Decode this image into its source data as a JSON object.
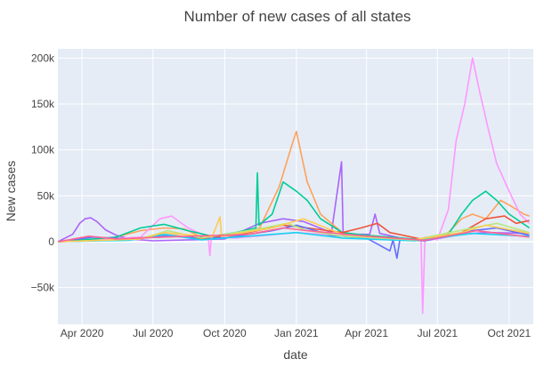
{
  "chart_data": {
    "type": "line",
    "title": "Number of new cases of all states",
    "xlabel": "date",
    "ylabel": "New cases",
    "xlim": [
      "2020-03-01",
      "2021-11-01"
    ],
    "ylim": [
      -90000,
      210000
    ],
    "x_ticks": [
      "2020-04-01",
      "2020-07-01",
      "2020-10-01",
      "2021-01-01",
      "2021-04-01",
      "2021-07-01",
      "2021-10-01"
    ],
    "x_tick_labels": [
      "Apr 2020",
      "Jul 2020",
      "Oct 2020",
      "Jan 2021",
      "Apr 2021",
      "Jul 2021",
      "Oct 2021"
    ],
    "y_ticks": [
      -50000,
      0,
      50000,
      100000,
      150000,
      200000
    ],
    "y_tick_labels": [
      "−50k",
      "0",
      "50k",
      "100k",
      "150k",
      "200k"
    ],
    "grid": true,
    "legend": "none",
    "plot_background": "#e5ecf6",
    "series": [
      {
        "color": "#ab63fa",
        "points": [
          [
            "2020-03-01",
            0
          ],
          [
            "2020-03-20",
            8000
          ],
          [
            "2020-03-29",
            20000
          ],
          [
            "2020-04-05",
            25000
          ],
          [
            "2020-04-12",
            26000
          ],
          [
            "2020-04-20",
            22000
          ],
          [
            "2020-05-01",
            13000
          ],
          [
            "2020-05-15",
            7000
          ],
          [
            "2020-06-01",
            3000
          ],
          [
            "2020-07-01",
            1000
          ],
          [
            "2020-10-01",
            3000
          ],
          [
            "2020-11-15",
            20000
          ],
          [
            "2020-12-15",
            25000
          ],
          [
            "2021-01-10",
            22000
          ],
          [
            "2021-02-15",
            10000
          ],
          [
            "2021-02-28",
            87000
          ],
          [
            "2021-03-02",
            8000
          ],
          [
            "2021-04-05",
            8000
          ],
          [
            "2021-04-12",
            30000
          ],
          [
            "2021-04-18",
            9000
          ],
          [
            "2021-05-15",
            4000
          ],
          [
            "2021-06-15",
            1000
          ],
          [
            "2021-08-01",
            8000
          ],
          [
            "2021-09-01",
            10000
          ],
          [
            "2021-10-27",
            9000
          ]
        ]
      },
      {
        "color": "#ffa15a",
        "points": [
          [
            "2020-03-01",
            0
          ],
          [
            "2020-05-01",
            2000
          ],
          [
            "2020-06-15",
            12000
          ],
          [
            "2020-07-15",
            15000
          ],
          [
            "2020-08-10",
            14000
          ],
          [
            "2020-09-01",
            5000
          ],
          [
            "2020-10-01",
            4000
          ],
          [
            "2020-11-15",
            15000
          ],
          [
            "2020-12-10",
            60000
          ],
          [
            "2020-12-28",
            110000
          ],
          [
            "2021-01-01",
            120000
          ],
          [
            "2021-01-06",
            100000
          ],
          [
            "2021-01-15",
            65000
          ],
          [
            "2021-02-01",
            30000
          ],
          [
            "2021-03-01",
            10000
          ],
          [
            "2021-04-01",
            5000
          ],
          [
            "2021-05-01",
            2000
          ],
          [
            "2021-06-15",
            1000
          ],
          [
            "2021-07-15",
            10000
          ],
          [
            "2021-08-01",
            25000
          ],
          [
            "2021-08-15",
            30000
          ],
          [
            "2021-09-01",
            25000
          ],
          [
            "2021-09-20",
            45000
          ],
          [
            "2021-10-01",
            40000
          ],
          [
            "2021-10-20",
            30000
          ],
          [
            "2021-10-27",
            28000
          ]
        ]
      },
      {
        "color": "#ff97ff",
        "points": [
          [
            "2020-03-01",
            0
          ],
          [
            "2020-06-15",
            5000
          ],
          [
            "2020-07-10",
            25000
          ],
          [
            "2020-07-25",
            28000
          ],
          [
            "2020-08-15",
            15000
          ],
          [
            "2020-09-10",
            5000
          ],
          [
            "2020-09-12",
            -15000
          ],
          [
            "2020-09-14",
            6000
          ],
          [
            "2020-10-15",
            4000
          ],
          [
            "2021-01-01",
            10000
          ],
          [
            "2021-05-01",
            3000
          ],
          [
            "2021-06-10",
            3000
          ],
          [
            "2021-06-12",
            -78000
          ],
          [
            "2021-06-15",
            5000
          ],
          [
            "2021-07-01",
            2000
          ],
          [
            "2021-07-15",
            35000
          ],
          [
            "2021-07-25",
            110000
          ],
          [
            "2021-08-05",
            150000
          ],
          [
            "2021-08-15",
            200000
          ],
          [
            "2021-08-25",
            160000
          ],
          [
            "2021-09-05",
            120000
          ],
          [
            "2021-09-15",
            85000
          ],
          [
            "2021-10-01",
            55000
          ],
          [
            "2021-10-15",
            30000
          ],
          [
            "2021-10-27",
            20000
          ]
        ]
      },
      {
        "color": "#00cc96",
        "points": [
          [
            "2020-03-01",
            0
          ],
          [
            "2020-04-15",
            3000
          ],
          [
            "2020-05-15",
            5000
          ],
          [
            "2020-06-15",
            15000
          ],
          [
            "2020-07-15",
            19000
          ],
          [
            "2020-08-15",
            12000
          ],
          [
            "2020-09-15",
            6000
          ],
          [
            "2020-10-15",
            10000
          ],
          [
            "2020-11-10",
            15000
          ],
          [
            "2020-11-12",
            75000
          ],
          [
            "2020-11-14",
            18000
          ],
          [
            "2020-12-01",
            30000
          ],
          [
            "2020-12-15",
            65000
          ],
          [
            "2021-01-01",
            55000
          ],
          [
            "2021-01-15",
            45000
          ],
          [
            "2021-02-01",
            25000
          ],
          [
            "2021-03-01",
            10000
          ],
          [
            "2021-04-01",
            7000
          ],
          [
            "2021-05-01",
            5000
          ],
          [
            "2021-06-15",
            2000
          ],
          [
            "2021-07-15",
            8000
          ],
          [
            "2021-08-01",
            30000
          ],
          [
            "2021-08-15",
            45000
          ],
          [
            "2021-09-01",
            55000
          ],
          [
            "2021-09-15",
            45000
          ],
          [
            "2021-10-01",
            30000
          ],
          [
            "2021-10-27",
            15000
          ]
        ]
      },
      {
        "color": "#ef553b",
        "points": [
          [
            "2020-03-01",
            0
          ],
          [
            "2020-06-01",
            2000
          ],
          [
            "2020-07-15",
            8000
          ],
          [
            "2020-09-01",
            3000
          ],
          [
            "2020-11-01",
            10000
          ],
          [
            "2020-12-15",
            18000
          ],
          [
            "2021-01-15",
            15000
          ],
          [
            "2021-03-01",
            10000
          ],
          [
            "2021-03-25",
            15000
          ],
          [
            "2021-04-15",
            20000
          ],
          [
            "2021-05-01",
            10000
          ],
          [
            "2021-06-15",
            2000
          ],
          [
            "2021-08-01",
            10000
          ],
          [
            "2021-09-01",
            25000
          ],
          [
            "2021-09-25",
            28000
          ],
          [
            "2021-10-10",
            20000
          ],
          [
            "2021-10-27",
            23000
          ]
        ]
      },
      {
        "color": "#636efa",
        "points": [
          [
            "2020-03-01",
            0
          ],
          [
            "2020-04-15",
            5000
          ],
          [
            "2020-06-01",
            3000
          ],
          [
            "2020-07-15",
            6000
          ],
          [
            "2020-10-01",
            4000
          ],
          [
            "2020-12-01",
            12000
          ],
          [
            "2021-01-01",
            18000
          ],
          [
            "2021-02-15",
            7000
          ],
          [
            "2021-04-01",
            4000
          ],
          [
            "2021-05-01",
            -10000
          ],
          [
            "2021-05-05",
            2000
          ],
          [
            "2021-05-10",
            -18000
          ],
          [
            "2021-05-14",
            3000
          ],
          [
            "2021-06-15",
            1000
          ],
          [
            "2021-08-15",
            12000
          ],
          [
            "2021-09-15",
            15000
          ],
          [
            "2021-10-27",
            7000
          ]
        ]
      },
      {
        "color": "#19d3f3",
        "points": [
          [
            "2020-03-01",
            0
          ],
          [
            "2020-06-01",
            1500
          ],
          [
            "2020-07-15",
            8000
          ],
          [
            "2020-09-01",
            2000
          ],
          [
            "2020-11-15",
            7000
          ],
          [
            "2021-01-01",
            10000
          ],
          [
            "2021-03-01",
            4000
          ],
          [
            "2021-06-01",
            1000
          ],
          [
            "2021-08-15",
            9000
          ],
          [
            "2021-10-01",
            7000
          ],
          [
            "2021-10-27",
            6000
          ]
        ]
      },
      {
        "color": "#b6e880",
        "points": [
          [
            "2020-03-01",
            0
          ],
          [
            "2020-06-15",
            3000
          ],
          [
            "2020-07-20",
            12000
          ],
          [
            "2020-09-01",
            4000
          ],
          [
            "2020-11-15",
            14000
          ],
          [
            "2020-12-20",
            20000
          ],
          [
            "2021-01-15",
            12000
          ],
          [
            "2021-03-01",
            6000
          ],
          [
            "2021-06-01",
            2000
          ],
          [
            "2021-08-15",
            15000
          ],
          [
            "2021-09-15",
            20000
          ],
          [
            "2021-10-27",
            10000
          ]
        ]
      },
      {
        "color": "#fecb52",
        "points": [
          [
            "2020-03-01",
            0
          ],
          [
            "2020-06-15",
            3000
          ],
          [
            "2020-07-15",
            10000
          ],
          [
            "2020-09-15",
            5000
          ],
          [
            "2020-09-25",
            27000
          ],
          [
            "2020-09-27",
            6000
          ],
          [
            "2020-12-01",
            15000
          ],
          [
            "2021-01-10",
            25000
          ],
          [
            "2021-03-01",
            8000
          ],
          [
            "2021-06-01",
            2000
          ],
          [
            "2021-08-01",
            10000
          ],
          [
            "2021-09-01",
            18000
          ],
          [
            "2021-10-27",
            9000
          ]
        ]
      },
      {
        "color": "#ff6692",
        "points": [
          [
            "2020-03-01",
            0
          ],
          [
            "2020-04-10",
            6000
          ],
          [
            "2020-05-15",
            3000
          ],
          [
            "2020-07-15",
            5000
          ],
          [
            "2020-11-01",
            8000
          ],
          [
            "2020-12-15",
            15000
          ],
          [
            "2021-01-15",
            12000
          ],
          [
            "2021-04-01",
            6000
          ],
          [
            "2021-06-15",
            1500
          ],
          [
            "2021-08-20",
            12000
          ],
          [
            "2021-10-27",
            5000
          ]
        ]
      }
    ]
  }
}
